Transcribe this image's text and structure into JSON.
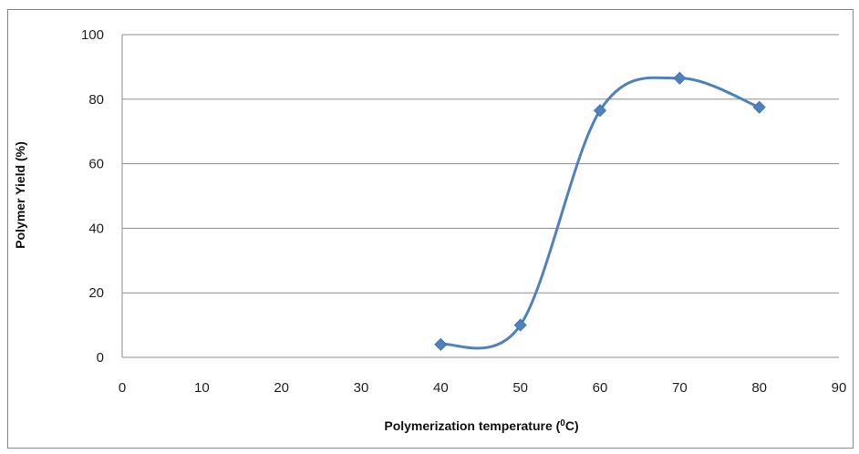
{
  "chart_data": {
    "type": "scatter",
    "title": "",
    "xlabel_main": "Polymerization temperature (",
    "xlabel_sup": "0",
    "xlabel_end": "C)",
    "ylabel": "Polymer Yield (%)",
    "xlim": [
      0,
      90
    ],
    "ylim": [
      0,
      100
    ],
    "x_ticks": [
      0,
      10,
      20,
      30,
      40,
      50,
      60,
      70,
      80,
      90
    ],
    "y_ticks": [
      0,
      20,
      40,
      60,
      80,
      100
    ],
    "grid": "horizontal",
    "legend": "none",
    "smooth": true,
    "series": [
      {
        "x": [
          40,
          50,
          60,
          70,
          80
        ],
        "y": [
          4,
          10,
          76.5,
          86.5,
          77.5
        ],
        "color": "#4f81bd"
      }
    ]
  }
}
